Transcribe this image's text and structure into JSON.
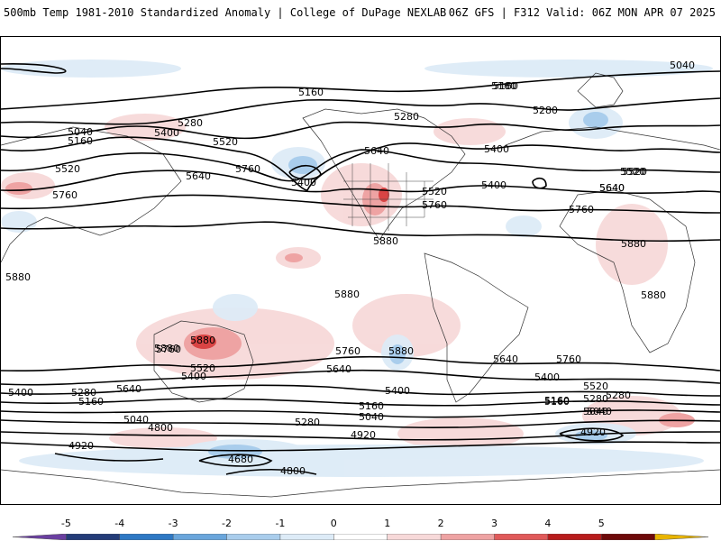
{
  "header": {
    "title_left": "500mb Temp 1981-2010 Standardized Anomaly | College of DuPage NEXLAB",
    "title_right": "06Z GFS | F312 Valid: 06Z MON APR 07 2025"
  },
  "colorbar": {
    "labels": [
      "-5",
      "-4",
      "-3",
      "-2",
      "-1",
      "0",
      "1",
      "2",
      "3",
      "4",
      "5"
    ],
    "colors": [
      "#6a3fa0",
      "#243c78",
      "#2e78c4",
      "#6aa6dc",
      "#a9cdec",
      "#ddebf7",
      "#ffffff",
      "#f7d9d9",
      "#eea3a3",
      "#e05a5a",
      "#b81c1c",
      "#6e0a0a",
      "#e8b400"
    ]
  },
  "map": {
    "contour_labels": [
      "5040",
      "5160",
      "5160",
      "5280",
      "5040",
      "5160",
      "5400",
      "5520",
      "5280",
      "5400",
      "5520",
      "5640",
      "5760",
      "5760",
      "5400",
      "5640",
      "5280",
      "5520",
      "5520",
      "5400",
      "5760",
      "5160",
      "5640",
      "5880",
      "5760",
      "5520",
      "5640",
      "5880",
      "5880",
      "5880",
      "5880",
      "5880",
      "5760",
      "5520",
      "5400",
      "5760",
      "5640",
      "5880",
      "5760",
      "5640",
      "5400",
      "5520",
      "5280",
      "5160",
      "5040",
      "5400",
      "5280",
      "5160",
      "5640",
      "5160",
      "5040",
      "5280",
      "5040",
      "4800",
      "4920",
      "4920",
      "4920",
      "4680",
      "4800",
      "5400",
      "5280",
      "5160",
      "5040",
      "5880"
    ]
  }
}
